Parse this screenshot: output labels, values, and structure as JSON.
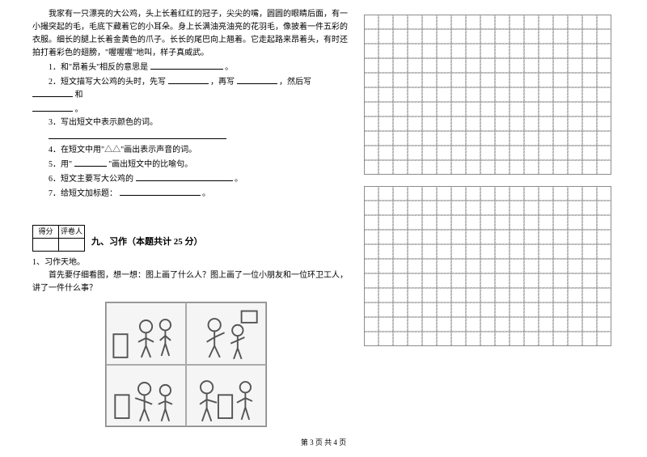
{
  "passage": {
    "p1": "我家有一只漂亮的大公鸡，头上长着红红的冠子，尖尖的嘴，圆圆的眼睛后面，有一小撮突起的毛，毛底下藏着它的小耳朵。身上长满油亮油亮的花羽毛，像披着一件五彩的衣服。细长的腿上长着金黄色的爪子。长长的尾巴向上翘着。它走起路来昂着头，有时还拍打着彩色的翅膀，\"喔喔喔\"地叫，样子真威武。"
  },
  "questions": {
    "q1": "1．和\"昂着头\"相反的意思是",
    "q1_end": "。",
    "q2": "2．短文描写大公鸡的头时，先写",
    "q2_mid1": "，再写",
    "q2_mid2": "，然后写",
    "q2_mid3": "和",
    "q2_end": "。",
    "q3": "3．写出短文中表示颜色的词。",
    "q4": "4．在短文中用\"△△\"画出表示声音的词。",
    "q5": "5．用\"",
    "q5_end": "\"画出短文中的比喻句。",
    "q6": "6．短文主要写大公鸡的",
    "q6_end": "。",
    "q7": "7．给短文加标题：",
    "q7_end": "。"
  },
  "score_table": {
    "h1": "得分",
    "h2": "评卷人"
  },
  "section9": {
    "title": "九、习作（本题共计 25 分）",
    "item1": "1、习作天地。",
    "item1_body": "首先要仔细看图，想一想：图上画了什么人？图上画了一位小朋友和一位环卫工人，讲了一件什么事？"
  },
  "grid": {
    "rows": 11,
    "cols": 17,
    "cell_size": 18,
    "border_color": "#888888",
    "dash_color": "#999999"
  },
  "footer": "第 3 页 共 4 页"
}
